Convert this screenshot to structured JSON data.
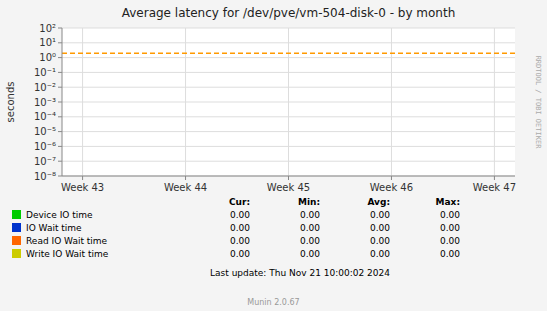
{
  "chart_data": {
    "type": "line",
    "title": "Average latency for /dev/pve/vm-504-disk-0 - by month",
    "ylabel": "seconds",
    "categories": [
      "Week 43",
      "Week 44",
      "Week 45",
      "Week 46",
      "Week 47"
    ],
    "series": [
      {
        "name": "Device IO time",
        "color": "#00cc00",
        "values": [
          null,
          null,
          null,
          null,
          null
        ]
      },
      {
        "name": "IO Wait time",
        "color": "#0033cc",
        "values": [
          null,
          null,
          null,
          null,
          null
        ]
      },
      {
        "name": "Read IO Wait time",
        "color": "#ff6600",
        "values": [
          null,
          null,
          null,
          null,
          null
        ]
      },
      {
        "name": "Write IO Wait time",
        "color": "#cccc00",
        "values": [
          null,
          null,
          null,
          null,
          null
        ]
      }
    ],
    "log": "y",
    "ylim": [
      1e-08,
      100
    ],
    "yticks": [
      {
        "value": 1e-08,
        "label": "10⁻⁸"
      },
      {
        "value": 1e-07,
        "label": "10⁻⁷"
      },
      {
        "value": 1e-06,
        "label": "10⁻⁶"
      },
      {
        "value": 1e-05,
        "label": "10⁻⁵"
      },
      {
        "value": 0.0001,
        "label": "10⁻⁴"
      },
      {
        "value": 0.001,
        "label": "10⁻³"
      },
      {
        "value": 0.01,
        "label": "10⁻²"
      },
      {
        "value": 0.1,
        "label": "10⁻¹"
      },
      {
        "value": 1,
        "label": "10⁰"
      },
      {
        "value": 10,
        "label": "10¹"
      },
      {
        "value": 100,
        "label": "10²"
      }
    ],
    "grid": true,
    "legend": "bottom",
    "hlines": [
      {
        "value": 2.0,
        "color": "#ff9900",
        "line_style": "dashed"
      }
    ],
    "table": {
      "headers": [
        "Cur:",
        "Min:",
        "Avg:",
        "Max:"
      ],
      "rows": [
        [
          "0.00",
          "0.00",
          "0.00",
          "0.00"
        ],
        [
          "0.00",
          "0.00",
          "0.00",
          "0.00"
        ],
        [
          "0.00",
          "0.00",
          "0.00",
          "0.00"
        ],
        [
          "0.00",
          "0.00",
          "0.00",
          "0.00"
        ]
      ]
    },
    "annotations": [
      "Last update: Thu Nov 21 10:00:02 2024",
      "Munin 2.0.67",
      "RRDTOOL / TOBI OETIKER"
    ]
  }
}
